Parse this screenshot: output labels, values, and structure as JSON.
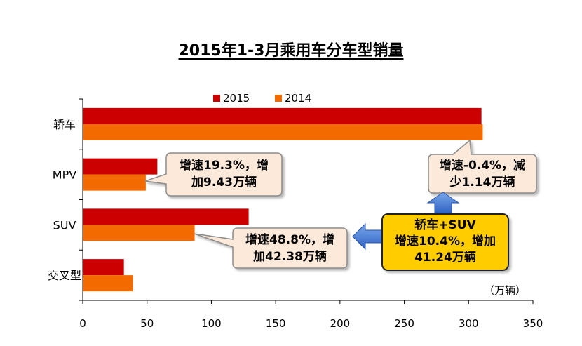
{
  "chart_data": {
    "type": "bar",
    "orientation": "horizontal",
    "title": "2015年1-3月乘用车分车型销量",
    "categories": [
      "轿车",
      "MPV",
      "SUV",
      "交叉型"
    ],
    "series": [
      {
        "name": "2015",
        "color": "#cc0000",
        "values": [
          310,
          58,
          129,
          32
        ]
      },
      {
        "name": "2014",
        "color": "#f26a00",
        "values": [
          311,
          49,
          87,
          39
        ]
      }
    ],
    "x_ticks": [
      0,
      50,
      100,
      150,
      200,
      250,
      300,
      350
    ],
    "xlim": [
      0,
      350
    ],
    "unit_label": "（万辆）",
    "legend_position": "top",
    "grid": false
  },
  "annotations": {
    "mpv_line1": "增速19.3%，增",
    "mpv_line2": "加9.43万辆",
    "suv_line1": "增速48.8%，增",
    "suv_line2": "加42.38万辆",
    "sedan_line1": "增速-0.4%，减",
    "sedan_line2": "少1.14万辆",
    "combined_line1": "轿车+SUV",
    "combined_line2": "增速10.4%，增加",
    "combined_line3": "41.24万辆"
  },
  "colors": {
    "callout_fill": "#fde9d9",
    "callout_border": "#8c8c8c",
    "highlight_fill": "#ffcc00",
    "arrow_blue": "#3c78d8"
  }
}
